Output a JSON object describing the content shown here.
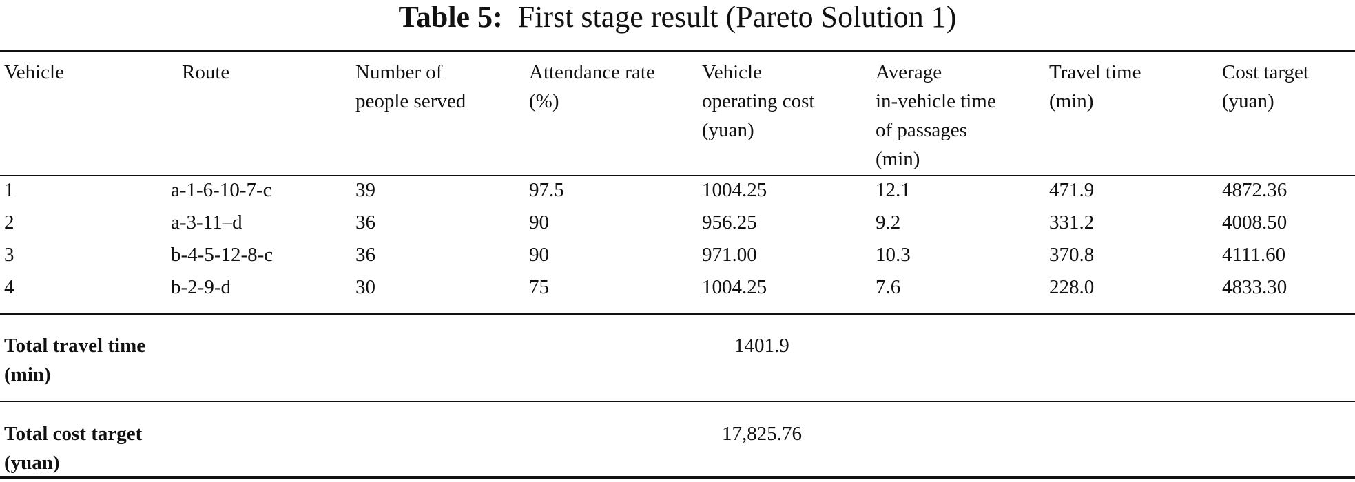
{
  "caption": {
    "label": "Table 5:",
    "text": "First stage result (Pareto Solution 1)"
  },
  "headers": [
    [
      "Vehicle"
    ],
    [
      "Route"
    ],
    [
      "Number of",
      "people served"
    ],
    [
      "Attendance rate",
      "(%)"
    ],
    [
      "Vehicle",
      "operating cost",
      "(yuan)"
    ],
    [
      "Average",
      "in-vehicle time",
      "of passages",
      "(min)"
    ],
    [
      "Travel time",
      "(min)"
    ],
    [
      "Cost target",
      "(yuan)"
    ]
  ],
  "rows": [
    [
      "1",
      "a-1-6-10-7-c",
      "39",
      "97.5",
      "1004.25",
      "12.1",
      "471.9",
      "4872.36"
    ],
    [
      "2",
      "a-3-11–d",
      "36",
      "90",
      "956.25",
      "9.2",
      "331.2",
      "4008.50"
    ],
    [
      "3",
      "b-4-5-12-8-c",
      "36",
      "90",
      "971.00",
      "10.3",
      "370.8",
      "4111.60"
    ],
    [
      "4",
      "b-2-9-d",
      "30",
      "75",
      "1004.25",
      "7.6",
      "228.0",
      "4833.30"
    ]
  ],
  "totals": [
    {
      "label": [
        "Total travel time",
        "(min)"
      ],
      "value": "1401.9"
    },
    {
      "label": [
        "Total cost target",
        "(yuan)"
      ],
      "value": "17,825.76"
    }
  ]
}
